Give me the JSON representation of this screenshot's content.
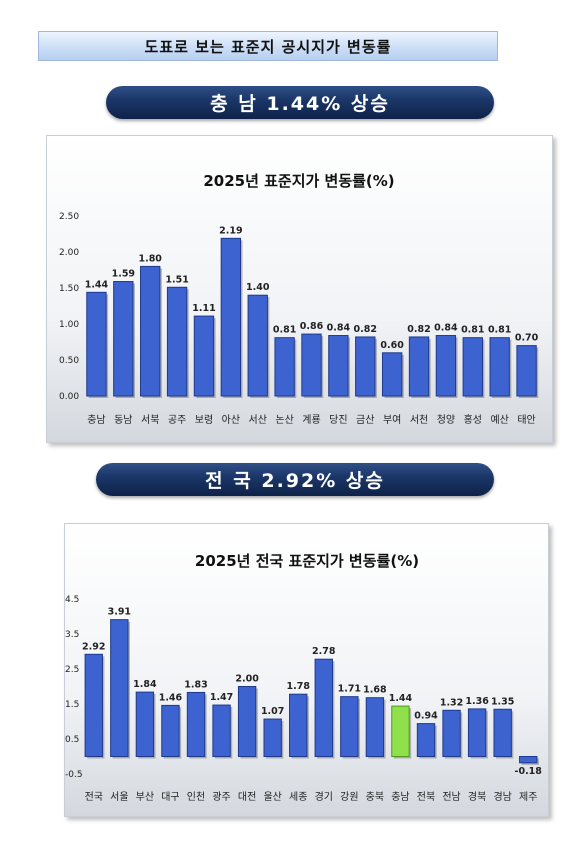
{
  "header": {
    "title": "도표로 보는 표준지 공시지가 변동률"
  },
  "banner1": {
    "text": "충 남 1.44% 상승"
  },
  "banner2": {
    "text": "전 국 2.92% 상승"
  },
  "colors": {
    "bar": "#3d63d0",
    "bar_dark": "#1f3a8c",
    "highlight": "#8fe04a",
    "highlight_dark": "#4f9a1c"
  },
  "chart_data": [
    {
      "type": "bar",
      "title": "2025년 표준지가 변동률(%)",
      "categories": [
        "충남",
        "동남",
        "서북",
        "공주",
        "보령",
        "아산",
        "서산",
        "논산",
        "계룡",
        "당진",
        "금산",
        "부여",
        "서천",
        "청양",
        "홍성",
        "예산",
        "태안"
      ],
      "values": [
        1.44,
        1.59,
        1.8,
        1.51,
        1.11,
        2.19,
        1.4,
        0.81,
        0.86,
        0.84,
        0.82,
        0.6,
        0.82,
        0.84,
        0.81,
        0.81,
        0.7
      ],
      "value_labels": [
        "1.44",
        "1.59",
        "1.80",
        "1.51",
        "1.11",
        "2.19",
        "1.40",
        "0.81",
        "0.86",
        "0.84",
        "0.82",
        "0.60",
        "0.82",
        "0.84",
        "0.81",
        "0.81",
        "0.70"
      ],
      "ylim": [
        0,
        2.5
      ],
      "yticks": [
        "0.00",
        "0.50",
        "1.00",
        "1.50",
        "2.00",
        "2.50"
      ],
      "grid": false
    },
    {
      "type": "bar",
      "title": "2025년 전국 표준지가 변동률(%)",
      "categories": [
        "전국",
        "서울",
        "부산",
        "대구",
        "인천",
        "광주",
        "대전",
        "울산",
        "세종",
        "경기",
        "강원",
        "충북",
        "충남",
        "전북",
        "전남",
        "경북",
        "경남",
        "제주"
      ],
      "values": [
        2.92,
        3.91,
        1.84,
        1.46,
        1.83,
        1.47,
        2.0,
        1.07,
        1.78,
        2.78,
        1.71,
        1.68,
        1.44,
        0.94,
        1.32,
        1.36,
        1.35,
        -0.18
      ],
      "value_labels": [
        "2.92",
        "3.91",
        "1.84",
        "1.46",
        "1.83",
        "1.47",
        "2.00",
        "1.07",
        "1.78",
        "2.78",
        "1.71",
        "1.68",
        "1.44",
        "0.94",
        "1.32",
        "1.36",
        "1.35",
        "-0.18"
      ],
      "highlight": "충남",
      "ylim": [
        -0.5,
        4.5
      ],
      "yticks": [
        "-0.5",
        "0.5",
        "1.5",
        "2.5",
        "3.5",
        "4.5"
      ],
      "grid": false
    }
  ]
}
